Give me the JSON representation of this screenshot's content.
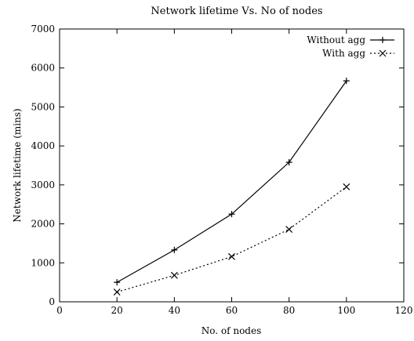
{
  "chart_data": {
    "type": "line",
    "title": "Network lifetime Vs. No of nodes",
    "xlabel": "No. of nodes",
    "ylabel": "Network lifetime (mins)",
    "xlim": [
      0,
      120
    ],
    "ylim": [
      0,
      7000
    ],
    "x_ticks": [
      0,
      20,
      40,
      60,
      80,
      100,
      120
    ],
    "y_ticks": [
      0,
      1000,
      2000,
      3000,
      4000,
      5000,
      6000,
      7000
    ],
    "x_tick_labels": [
      "0",
      "20",
      "40",
      "60",
      "80",
      "100",
      "120"
    ],
    "y_tick_labels": [
      "0",
      "1000",
      "2000",
      "3000",
      "4000",
      "5000",
      "6000",
      "7000"
    ],
    "grid": false,
    "legend_position": "top-right",
    "series": [
      {
        "name": "Without agg",
        "x": [
          20,
          40,
          60,
          80,
          100
        ],
        "values": [
          500,
          1330,
          2250,
          3580,
          5670
        ],
        "marker": "plus",
        "line_style": "solid",
        "color": "#000000"
      },
      {
        "name": "With agg",
        "x": [
          20,
          40,
          60,
          80,
          100
        ],
        "values": [
          250,
          680,
          1160,
          1860,
          2950
        ],
        "marker": "cross",
        "line_style": "dotted",
        "color": "#000000"
      }
    ]
  }
}
